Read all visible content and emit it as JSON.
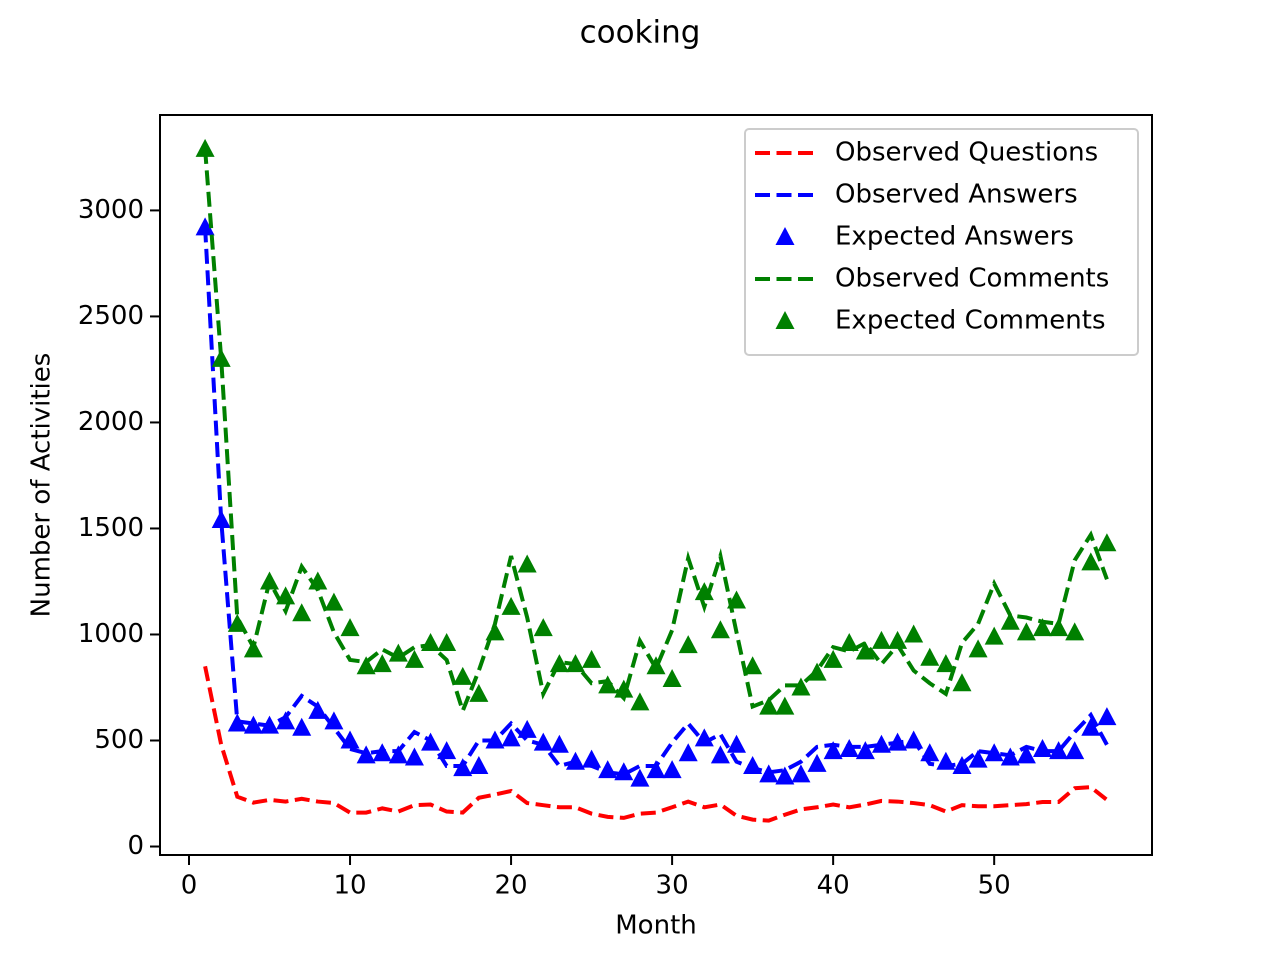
{
  "chart_data": {
    "type": "line",
    "title": "cooking",
    "x_label": "Month",
    "y_label": "Number of Activities",
    "x": [
      1,
      2,
      3,
      4,
      5,
      6,
      7,
      8,
      9,
      10,
      11,
      12,
      13,
      14,
      15,
      16,
      17,
      18,
      19,
      20,
      21,
      22,
      23,
      24,
      25,
      26,
      27,
      28,
      29,
      30,
      31,
      32,
      33,
      34,
      35,
      36,
      37,
      38,
      39,
      40,
      41,
      42,
      43,
      44,
      45,
      46,
      47,
      48,
      49,
      50,
      51,
      52,
      53,
      54,
      55,
      56,
      57
    ],
    "xlim": [
      -1.8,
      59.8
    ],
    "xticks": [
      0,
      10,
      20,
      30,
      40,
      50
    ],
    "ylim": [
      -40,
      3450
    ],
    "yticks": [
      0,
      500,
      1000,
      1500,
      2000,
      2500,
      3000
    ],
    "legend": "upper right",
    "series": [
      {
        "name": "Observed Questions",
        "color": "#ff0000",
        "style": "dashed",
        "values": [
          850,
          480,
          235,
          207,
          220,
          212,
          225,
          212,
          205,
          160,
          160,
          180,
          165,
          195,
          198,
          165,
          160,
          230,
          245,
          262,
          205,
          195,
          185,
          185,
          155,
          140,
          135,
          155,
          160,
          185,
          212,
          185,
          198,
          145,
          127,
          122,
          150,
          175,
          185,
          198,
          185,
          198,
          215,
          212,
          205,
          195,
          165,
          195,
          190,
          190,
          195,
          200,
          210,
          210,
          275,
          280,
          220
        ]
      },
      {
        "name": "Observed Answers",
        "color": "#0000ff",
        "style": "dashed",
        "values": [
          2920,
          1540,
          590,
          580,
          570,
          610,
          710,
          660,
          560,
          460,
          440,
          450,
          450,
          540,
          500,
          380,
          380,
          500,
          500,
          580,
          500,
          480,
          380,
          400,
          380,
          350,
          340,
          380,
          380,
          490,
          580,
          490,
          530,
          400,
          370,
          350,
          360,
          400,
          470,
          480,
          470,
          470,
          480,
          490,
          500,
          390,
          380,
          390,
          450,
          440,
          430,
          470,
          450,
          450,
          540,
          620,
          480
        ]
      },
      {
        "name": "Expected Answers",
        "color": "#0000ff",
        "style": "triangle",
        "values": [
          2920,
          1540,
          580,
          570,
          570,
          590,
          560,
          640,
          590,
          500,
          430,
          440,
          430,
          420,
          490,
          450,
          370,
          380,
          500,
          510,
          550,
          490,
          480,
          400,
          410,
          360,
          350,
          320,
          360,
          360,
          440,
          510,
          430,
          480,
          380,
          340,
          330,
          340,
          390,
          450,
          460,
          450,
          480,
          490,
          500,
          440,
          400,
          380,
          410,
          440,
          420,
          430,
          460,
          450,
          450,
          560,
          610
        ]
      },
      {
        "name": "Observed Comments",
        "color": "#008000",
        "style": "dashed",
        "values": [
          3290,
          2300,
          1080,
          940,
          1250,
          1110,
          1320,
          1210,
          1010,
          880,
          870,
          930,
          890,
          940,
          950,
          880,
          640,
          830,
          1050,
          1370,
          1080,
          720,
          870,
          860,
          770,
          780,
          700,
          970,
          840,
          1020,
          1360,
          1130,
          1370,
          1010,
          660,
          690,
          760,
          760,
          830,
          940,
          920,
          960,
          860,
          950,
          830,
          770,
          720,
          960,
          1050,
          1240,
          1090,
          1080,
          1060,
          1050,
          1350,
          1470,
          1260
        ]
      },
      {
        "name": "Expected Comments",
        "color": "#008000",
        "style": "triangle",
        "values": [
          3290,
          2300,
          1050,
          930,
          1250,
          1180,
          1100,
          1250,
          1150,
          1030,
          850,
          860,
          910,
          880,
          960,
          960,
          800,
          720,
          1010,
          1130,
          1330,
          1030,
          860,
          860,
          880,
          760,
          740,
          680,
          850,
          790,
          950,
          1200,
          1020,
          1160,
          850,
          660,
          660,
          750,
          820,
          880,
          960,
          920,
          970,
          970,
          1000,
          890,
          860,
          770,
          930,
          990,
          1060,
          1010,
          1030,
          1030,
          1010,
          1340,
          1430
        ]
      }
    ]
  }
}
